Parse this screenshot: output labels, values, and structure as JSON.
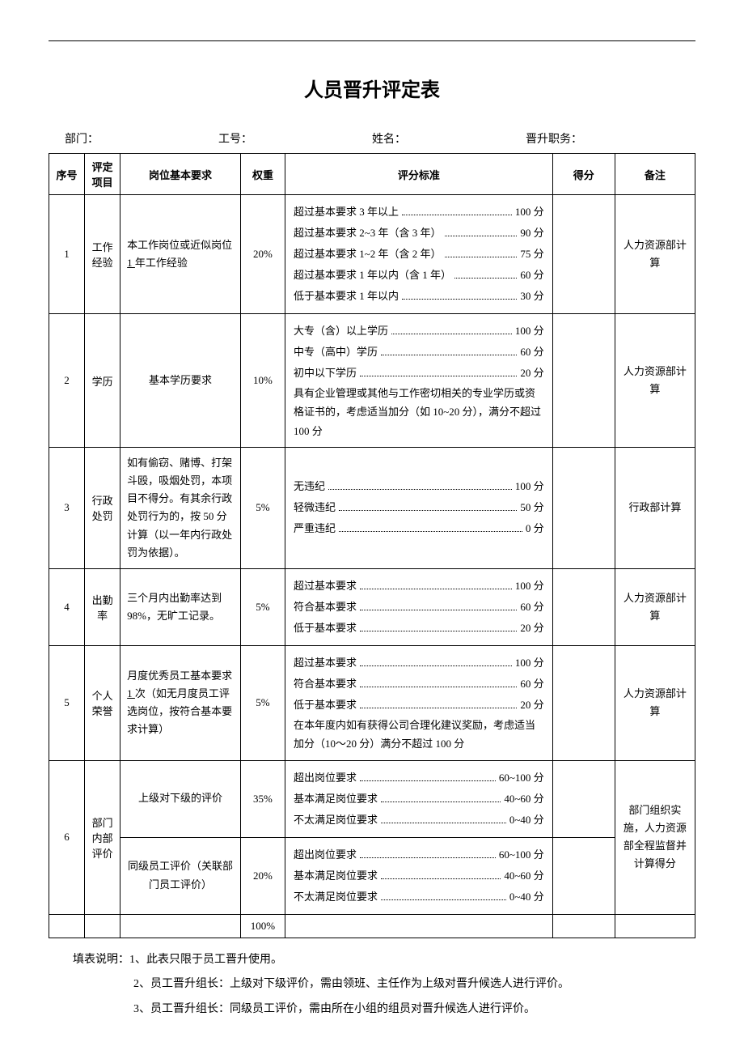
{
  "title": "人员晋升评定表",
  "header": {
    "dept_label": "部门：",
    "emp_id_label": "工号：",
    "name_label": "姓名：",
    "position_label": "晋升职务："
  },
  "columns": {
    "seq": "序号",
    "item": "评定项目",
    "req": "岗位基本要求",
    "weight": "权重",
    "criteria": "评分标准",
    "score": "得分",
    "note": "备注"
  },
  "rows": [
    {
      "seq": "1",
      "item": "工作经验",
      "req_pre": "本工作岗位或近似岗位",
      "req_underline": " 1 ",
      "req_post": "年工作经验",
      "weight": "20%",
      "criteria_lines": [
        {
          "label": "超过基本要求 3 年以上",
          "score": "100 分"
        },
        {
          "label": "超过基本要求 2~3 年（含 3 年）",
          "score": "90 分"
        },
        {
          "label": "超过基本要求 1~2 年（含 2 年）",
          "score": "75 分"
        },
        {
          "label": "超过基本要求 1 年以内（含 1 年）",
          "score": "60 分"
        },
        {
          "label": "低于基本要求 1 年以内",
          "score": "30 分"
        }
      ],
      "note": "人力资源部计算"
    },
    {
      "seq": "2",
      "item": "学历",
      "req": "基本学历要求",
      "weight": "10%",
      "criteria_lines": [
        {
          "label": "大专（含）以上学历",
          "score": "100 分"
        },
        {
          "label": "中专（高中）学历",
          "score": "60 分"
        },
        {
          "label": "初中以下学历",
          "score": "20 分"
        }
      ],
      "criteria_note": "具有企业管理或其他与工作密切相关的专业学历或资格证书的，考虑适当加分（如 10~20 分），满分不超过 100 分",
      "note": "人力资源部计算"
    },
    {
      "seq": "3",
      "item": "行政处罚",
      "req": "如有偷窃、赌博、打架斗殴，吸烟处罚，本项目不得分。有其余行政处罚行为的，按 50 分计算（以一年内行政处罚为依据）。",
      "weight": "5%",
      "criteria_lines": [
        {
          "label": "无违纪",
          "score": "100 分"
        },
        {
          "label": "轻微违纪",
          "score": "50 分"
        },
        {
          "label": "严重违纪",
          "score": "0 分"
        }
      ],
      "note": "行政部计算"
    },
    {
      "seq": "4",
      "item": "出勤率",
      "req": "三个月内出勤率达到98%，无旷工记录。",
      "weight": "5%",
      "criteria_lines": [
        {
          "label": "超过基本要求",
          "score": "100 分"
        },
        {
          "label": "符合基本要求",
          "score": "60 分"
        },
        {
          "label": "低于基本要求",
          "score": "20 分"
        }
      ],
      "note": "人力资源部计算"
    },
    {
      "seq": "5",
      "item": "个人荣誉",
      "req_pre": "月度优秀员工基本要求",
      "req_underline": " 1 ",
      "req_post": "次（如无月度员工评选岗位，按符合基本要求计算）",
      "weight": "5%",
      "criteria_lines": [
        {
          "label": "超过基本要求",
          "score": "100 分"
        },
        {
          "label": "符合基本要求",
          "score": "60 分"
        },
        {
          "label": "低于基本要求",
          "score": "20 分"
        }
      ],
      "criteria_note": "在本年度内如有获得公司合理化建议奖励，考虑适当加分（10～20 分）满分不超过 100 分",
      "note": "人力资源部计算"
    },
    {
      "seq": "6",
      "item": "部门内部评价",
      "sub": [
        {
          "req": "上级对下级的评价",
          "weight": "35%",
          "criteria_lines": [
            {
              "label": "超出岗位要求",
              "score": "60~100 分"
            },
            {
              "label": "基本满足岗位要求",
              "score": "40~60 分"
            },
            {
              "label": "不太满足岗位要求",
              "score": "0~40 分"
            }
          ]
        },
        {
          "req": "同级员工评价（关联部门员工评价）",
          "weight": "20%",
          "criteria_lines": [
            {
              "label": "超出岗位要求",
              "score": "60~100 分"
            },
            {
              "label": "基本满足岗位要求",
              "score": "40~60 分"
            },
            {
              "label": "不太满足岗位要求",
              "score": "0~40 分"
            }
          ]
        }
      ],
      "note": "部门组织实施，人力资源部全程监督并计算得分"
    }
  ],
  "total_weight": "100%",
  "notes": {
    "prefix": "填表说明：",
    "n1": "1、此表只限于员工晋升使用。",
    "n2": "2、员工晋升组长：上级对下级评价，需由领班、主任作为上级对晋升候选人进行评价。",
    "n3": "3、员工晋升组长：同级员工评价，需由所在小组的组员对晋升候选人进行评价。"
  }
}
